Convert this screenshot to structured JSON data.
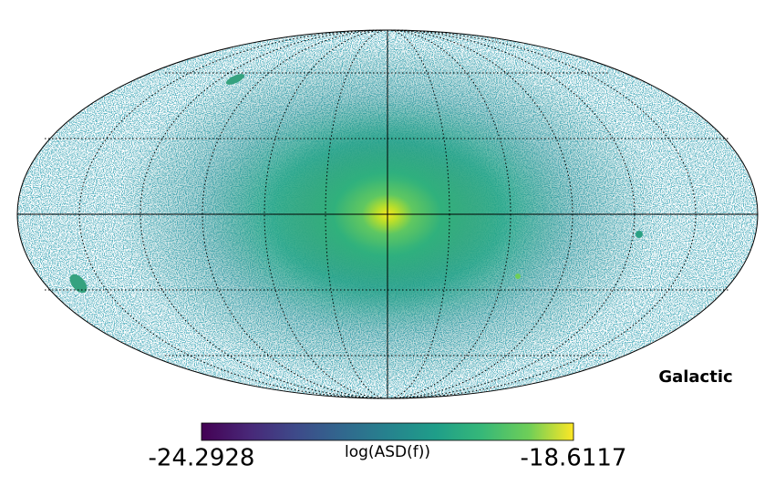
{
  "chart_data": {
    "type": "mollweide",
    "coord_label": "Galactic",
    "graticule": true,
    "colorbar": {
      "label": "log(ASD(f))",
      "lim": [
        -24.2928,
        -18.6117
      ],
      "colormap": "viridis"
    }
  }
}
